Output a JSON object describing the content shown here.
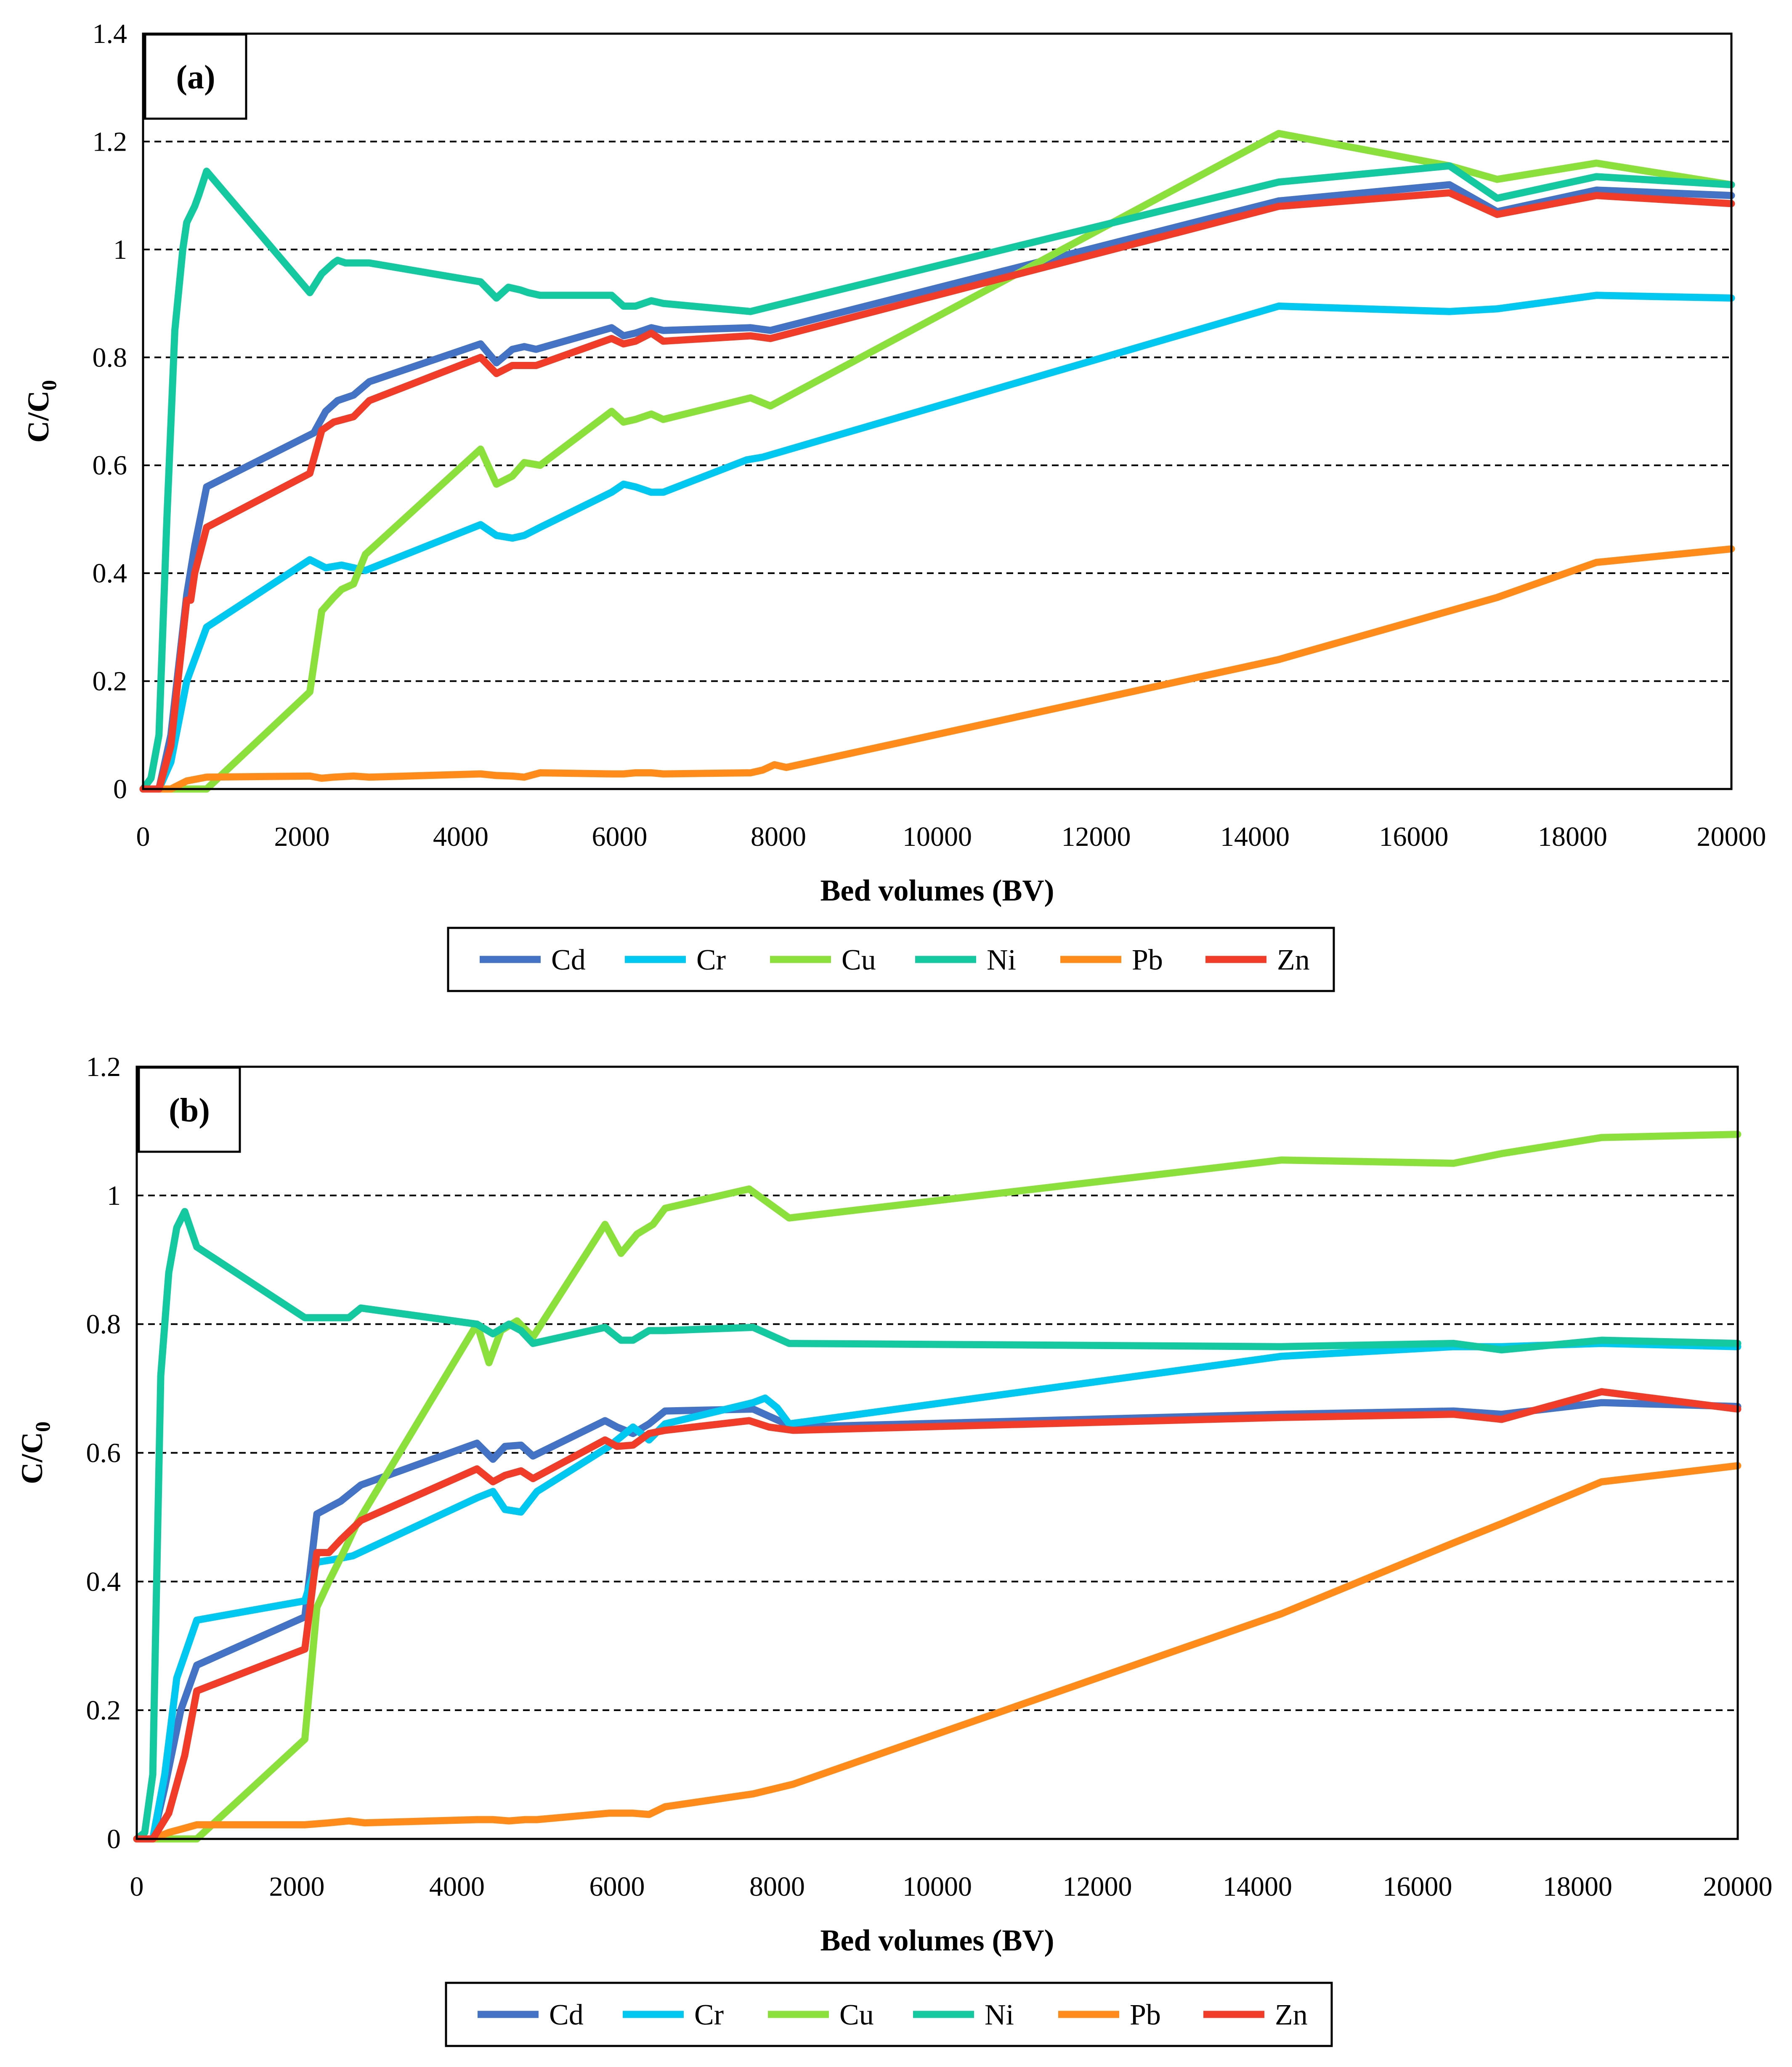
{
  "figure": {
    "line_colors": {
      "Cd": "#4472C4",
      "Cr": "#00C8F0",
      "Cu": "#8CE03C",
      "Ni": "#14C8A0",
      "Pb": "#FF8C1A",
      "Zn": "#F03C28"
    }
  },
  "chart_data": [
    {
      "type": "line",
      "panel_label": "(a)",
      "title": "",
      "xlabel": "Bed volumes (BV)",
      "ylabel": "C/C",
      "ylabel_sub": "0",
      "xlim": [
        0,
        20000
      ],
      "ylim": [
        0,
        1.4
      ],
      "xticks": [
        0,
        2000,
        4000,
        6000,
        8000,
        10000,
        12000,
        14000,
        16000,
        18000,
        20000
      ],
      "xtick_labels": [
        "0",
        "2000",
        "4000",
        "6000",
        "8000",
        "10000",
        "12000",
        "14000",
        "16000",
        "18000",
        "20000"
      ],
      "yticks": [
        0,
        0.2,
        0.4,
        0.6,
        0.8,
        1.0,
        1.2,
        1.4
      ],
      "ytick_labels": [
        "0",
        "0.2",
        "0.4",
        "0.6",
        "0.8",
        "1",
        "1.2",
        "1.4"
      ],
      "grid": "dashed horizontal",
      "legend": [
        "Cd",
        "Cr",
        "Cu",
        "Ni",
        "Pb",
        "Zn"
      ],
      "legend_position": "bottom",
      "series": [
        {
          "name": "Cd",
          "x": [
            0,
            200,
            350,
            550,
            650,
            800,
            2150,
            2300,
            2450,
            2650,
            2850,
            4250,
            4450,
            4650,
            4800,
            4950,
            5900,
            6050,
            6200,
            6400,
            6550,
            7650,
            7900,
            14300,
            16450,
            17050,
            18300,
            20000
          ],
          "y": [
            0,
            0,
            0.1,
            0.36,
            0.45,
            0.56,
            0.66,
            0.7,
            0.72,
            0.73,
            0.755,
            0.825,
            0.79,
            0.815,
            0.82,
            0.815,
            0.855,
            0.84,
            0.845,
            0.855,
            0.85,
            0.855,
            0.85,
            1.09,
            1.12,
            1.07,
            1.11,
            1.1
          ]
        },
        {
          "name": "Cr",
          "x": [
            0,
            200,
            350,
            550,
            800,
            2100,
            2300,
            2500,
            2650,
            2800,
            4250,
            4450,
            4650,
            4800,
            5000,
            5900,
            6050,
            6200,
            6400,
            6550,
            7600,
            7800,
            14300,
            16450,
            17050,
            18300,
            20000
          ],
          "y": [
            0,
            0,
            0.05,
            0.2,
            0.3,
            0.425,
            0.41,
            0.415,
            0.41,
            0.405,
            0.49,
            0.47,
            0.465,
            0.47,
            0.485,
            0.55,
            0.565,
            0.56,
            0.55,
            0.55,
            0.61,
            0.615,
            0.895,
            0.885,
            0.89,
            0.915,
            0.91
          ]
        },
        {
          "name": "Cu",
          "x": [
            0,
            200,
            400,
            800,
            2100,
            2250,
            2400,
            2500,
            2650,
            2800,
            4250,
            4450,
            4650,
            4800,
            5000,
            5900,
            6050,
            6200,
            6400,
            6550,
            7650,
            7900,
            14300,
            16450,
            17050,
            18300,
            20000
          ],
          "y": [
            0,
            0,
            0,
            0,
            0.18,
            0.33,
            0.355,
            0.37,
            0.38,
            0.435,
            0.63,
            0.565,
            0.58,
            0.605,
            0.6,
            0.7,
            0.68,
            0.685,
            0.695,
            0.685,
            0.725,
            0.71,
            1.215,
            1.155,
            1.13,
            1.16,
            1.12
          ]
        },
        {
          "name": "Ni",
          "x": [
            0,
            100,
            200,
            300,
            400,
            500,
            550,
            650,
            700,
            800,
            2100,
            2250,
            2400,
            2450,
            2550,
            2700,
            2850,
            4250,
            4450,
            4600,
            4750,
            4850,
            5000,
            5900,
            6050,
            6200,
            6400,
            6550,
            7650,
            14300,
            16450,
            17050,
            18300,
            20000
          ],
          "y": [
            0,
            0.02,
            0.1,
            0.5,
            0.85,
            1.0,
            1.05,
            1.08,
            1.1,
            1.145,
            0.92,
            0.955,
            0.975,
            0.98,
            0.975,
            0.975,
            0.975,
            0.94,
            0.91,
            0.93,
            0.925,
            0.92,
            0.915,
            0.915,
            0.895,
            0.895,
            0.905,
            0.9,
            0.885,
            1.125,
            1.155,
            1.095,
            1.135,
            1.12
          ]
        },
        {
          "name": "Pb",
          "x": [
            0,
            200,
            350,
            550,
            800,
            2100,
            2250,
            2400,
            2650,
            2850,
            4250,
            4450,
            4650,
            4800,
            5000,
            5900,
            6050,
            6200,
            6400,
            6550,
            7650,
            7800,
            7950,
            8100,
            14300,
            16450,
            17050,
            18300,
            20000
          ],
          "y": [
            0,
            0,
            0,
            0.015,
            0.022,
            0.024,
            0.02,
            0.022,
            0.024,
            0.022,
            0.028,
            0.025,
            0.024,
            0.022,
            0.03,
            0.028,
            0.028,
            0.03,
            0.03,
            0.028,
            0.03,
            0.035,
            0.045,
            0.04,
            0.24,
            0.33,
            0.355,
            0.42,
            0.445
          ]
        },
        {
          "name": "Zn",
          "x": [
            0,
            200,
            350,
            550,
            600,
            650,
            800,
            2100,
            2250,
            2400,
            2650,
            2850,
            4250,
            4450,
            4650,
            4800,
            4950,
            5900,
            6050,
            6200,
            6400,
            6550,
            7650,
            7900,
            14300,
            16450,
            17050,
            18300,
            20000
          ],
          "y": [
            0,
            0,
            0.08,
            0.35,
            0.35,
            0.4,
            0.485,
            0.585,
            0.665,
            0.68,
            0.69,
            0.72,
            0.8,
            0.77,
            0.785,
            0.785,
            0.785,
            0.835,
            0.825,
            0.83,
            0.845,
            0.83,
            0.84,
            0.835,
            1.08,
            1.105,
            1.065,
            1.1,
            1.085
          ]
        }
      ]
    },
    {
      "type": "line",
      "panel_label": "(b)",
      "title": "",
      "xlabel": "Bed volumes (BV)",
      "ylabel": "C/C",
      "ylabel_sub": "0",
      "xlim": [
        0,
        20000
      ],
      "ylim": [
        0,
        1.2
      ],
      "xticks": [
        0,
        2000,
        4000,
        6000,
        8000,
        10000,
        12000,
        14000,
        16000,
        18000,
        20000
      ],
      "xtick_labels": [
        "0",
        "2000",
        "4000",
        "6000",
        "8000",
        "10000",
        "12000",
        "14000",
        "16000",
        "18000",
        "20000"
      ],
      "yticks": [
        0,
        0.2,
        0.4,
        0.6,
        0.8,
        1.0,
        1.2
      ],
      "ytick_labels": [
        "0",
        "0.2",
        "0.4",
        "0.6",
        "0.8",
        "1",
        "1.2"
      ],
      "grid": "dashed horizontal",
      "legend": [
        "Cd",
        "Cr",
        "Cu",
        "Ni",
        "Pb",
        "Zn"
      ],
      "legend_position": "bottom",
      "series": [
        {
          "name": "Cd",
          "x": [
            0,
            200,
            350,
            550,
            750,
            2100,
            2250,
            2400,
            2550,
            2800,
            4250,
            4450,
            4600,
            4800,
            4950,
            5850,
            6000,
            6200,
            6400,
            6600,
            7700,
            8200,
            14300,
            16450,
            17050,
            18300,
            20000
          ],
          "y": [
            0,
            0,
            0.08,
            0.2,
            0.27,
            0.345,
            0.505,
            0.515,
            0.525,
            0.55,
            0.615,
            0.59,
            0.61,
            0.612,
            0.595,
            0.65,
            0.64,
            0.63,
            0.645,
            0.665,
            0.668,
            0.64,
            0.66,
            0.665,
            0.66,
            0.678,
            0.672
          ]
        },
        {
          "name": "Cr",
          "x": [
            0,
            200,
            350,
            500,
            750,
            2100,
            2250,
            2500,
            2700,
            4250,
            4450,
            4600,
            4800,
            5000,
            5900,
            6050,
            6200,
            6400,
            6600,
            7700,
            7850,
            8000,
            8150,
            14300,
            16450,
            17050,
            18300,
            20000
          ],
          "y": [
            0,
            0,
            0.1,
            0.25,
            0.34,
            0.37,
            0.43,
            0.435,
            0.44,
            0.53,
            0.54,
            0.512,
            0.508,
            0.54,
            0.61,
            0.625,
            0.64,
            0.62,
            0.645,
            0.678,
            0.685,
            0.67,
            0.645,
            0.75,
            0.765,
            0.765,
            0.77,
            0.765
          ]
        },
        {
          "name": "Cu",
          "x": [
            0,
            200,
            400,
            750,
            2100,
            2250,
            2400,
            2600,
            2750,
            4250,
            4400,
            4550,
            4750,
            4950,
            5850,
            6050,
            6250,
            6450,
            6600,
            7650,
            8150,
            14300,
            16450,
            17050,
            18300,
            20000
          ],
          "y": [
            0,
            0,
            0,
            0,
            0.155,
            0.36,
            0.4,
            0.45,
            0.49,
            0.8,
            0.74,
            0.79,
            0.805,
            0.78,
            0.955,
            0.91,
            0.94,
            0.955,
            0.98,
            1.01,
            0.965,
            1.055,
            1.05,
            1.065,
            1.09,
            1.095
          ]
        },
        {
          "name": "Ni",
          "x": [
            0,
            100,
            200,
            300,
            400,
            500,
            600,
            750,
            2100,
            2300,
            2650,
            2800,
            4250,
            4450,
            4650,
            4800,
            4950,
            5850,
            6050,
            6200,
            6400,
            6600,
            7700,
            8150,
            14300,
            16450,
            17050,
            18300,
            20000
          ],
          "y": [
            0,
            0.01,
            0.1,
            0.72,
            0.88,
            0.95,
            0.975,
            0.92,
            0.81,
            0.81,
            0.81,
            0.825,
            0.8,
            0.785,
            0.8,
            0.79,
            0.77,
            0.795,
            0.775,
            0.775,
            0.79,
            0.79,
            0.795,
            0.77,
            0.765,
            0.77,
            0.76,
            0.775,
            0.77
          ]
        },
        {
          "name": "Pb",
          "x": [
            0,
            200,
            400,
            550,
            750,
            2100,
            2400,
            2650,
            2850,
            4250,
            4450,
            4650,
            4850,
            5000,
            5900,
            6050,
            6200,
            6400,
            6600,
            7700,
            8200,
            14300,
            16450,
            17050,
            18300,
            20000
          ],
          "y": [
            0,
            0,
            0.01,
            0.015,
            0.022,
            0.022,
            0.025,
            0.028,
            0.025,
            0.03,
            0.03,
            0.028,
            0.03,
            0.03,
            0.04,
            0.04,
            0.04,
            0.038,
            0.05,
            0.07,
            0.085,
            0.35,
            0.46,
            0.49,
            0.555,
            0.58
          ]
        },
        {
          "name": "Zn",
          "x": [
            0,
            200,
            400,
            600,
            750,
            2100,
            2250,
            2400,
            2550,
            2800,
            4250,
            4450,
            4600,
            4800,
            4950,
            5850,
            6000,
            6200,
            6400,
            6600,
            7650,
            7900,
            8200,
            14300,
            16450,
            17050,
            18300,
            20000
          ],
          "y": [
            0,
            0,
            0.04,
            0.13,
            0.23,
            0.295,
            0.445,
            0.445,
            0.465,
            0.495,
            0.575,
            0.555,
            0.565,
            0.572,
            0.56,
            0.62,
            0.61,
            0.612,
            0.63,
            0.635,
            0.65,
            0.64,
            0.635,
            0.655,
            0.66,
            0.652,
            0.695,
            0.668
          ]
        }
      ]
    }
  ]
}
